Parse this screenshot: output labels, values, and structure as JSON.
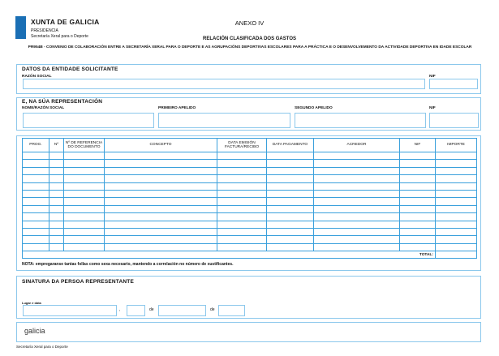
{
  "header": {
    "org": "XUNTA DE GALICIA",
    "dept": "PRESIDENCIA",
    "subdept": "Secretaría Xeral para o Deporte",
    "annex": "ANEXO IV",
    "title": "RELACIÓN CLASIFICADA DOS GASTOS",
    "subtitle": "PR954B - CONVENIO DE COLABORACIÓN ENTRE A SECRETARÍA XERAL PARA O DEPORTE E AS AGRUPACIÓNS DEPORTIVAS ESCOLARES PARA A PRÁCTICA E O DESENVOLVEMENTO DA ACTIVIDADE DEPORTIVA EN IDADE ESCOLAR"
  },
  "entity": {
    "title": "DATOS DA ENTIDADE SOLICITANTE",
    "razon_label": "RAZÓN SOCIAL",
    "nif_label": "NIF"
  },
  "representative": {
    "title": "E, NA SÚA REPRESENTACIÓN",
    "name_label": "NOME/RAZÓN SOCIAL",
    "first_label": "PRIMEIRO APELIDO",
    "second_label": "SEGUNDO APELIDO",
    "nif_label": "NIF"
  },
  "expenses": {
    "columns": [
      "PROG.",
      "Nº",
      "Nº DE REFERENCIA DO DOCUMENTO",
      "CONCEPTO",
      "DATA EMISIÓN FACTURA/RECIBO",
      "DATA PAGAMENTO",
      "ACREDOR",
      "NIF",
      "IMPORTE"
    ],
    "total_label": "TOTAL:",
    "note": "NOTA: empregaranse tantas follas como sexa necesario, mantendo a correlación no número de xustificantes."
  },
  "signature": {
    "title": "SINATURA DA PERSOA REPRESENTANTE",
    "place_date_label": "Lugar e data",
    "comma": ",",
    "de1": "de",
    "de2": "de"
  },
  "footer": {
    "logo": "galicia",
    "text": "Secretaría Xeral para o Deporte"
  },
  "colors": {
    "border": "#8cc8ec",
    "grid": "#3aa0dc",
    "logo_blue": "#1a6fb5"
  }
}
